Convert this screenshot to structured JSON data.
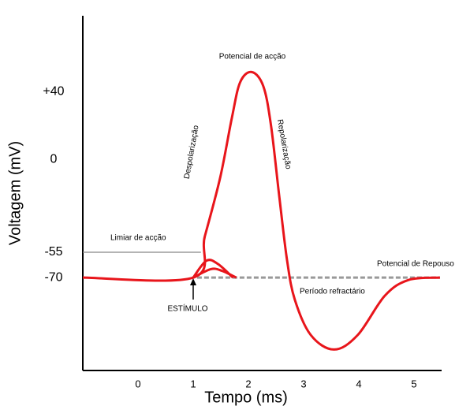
{
  "chart_data": {
    "type": "line",
    "xlabel": "Tempo (ms)",
    "ylabel": "Voltagem (mV)",
    "xlim": [
      -1,
      5.5
    ],
    "xticks": [
      0,
      1,
      2,
      3,
      4,
      5
    ],
    "ylim": [
      -125,
      85
    ],
    "yticks": [
      {
        "value": 40,
        "label": "+40"
      },
      0,
      -55,
      -70
    ],
    "grid": false,
    "series": [
      {
        "color": "#e8151b",
        "x": [
          -1,
          1,
          1.21,
          1.49,
          1.7,
          1.85,
          2.06,
          2.27,
          2.41,
          2.56,
          2.7,
          2.84,
          3.13,
          3.55,
          3.98,
          4.47,
          4.9,
          5.47
        ],
        "values": [
          -70,
          -70,
          -45.6,
          -10.6,
          24.5,
          45.6,
          51.7,
          43.3,
          19.9,
          -22.2,
          -59.7,
          -83,
          -104,
          -112.6,
          -104,
          -80.8,
          -71.4,
          -70
        ]
      },
      {
        "color": "#e8151b",
        "x": [
          1,
          1.24,
          1.45,
          1.72
        ],
        "values": [
          -70,
          -60,
          -62,
          -70
        ]
      },
      {
        "color": "#e8151b",
        "x": [
          1,
          1.32,
          1.52,
          1.78
        ],
        "values": [
          -70,
          -65,
          -66,
          -70
        ]
      },
      {
        "color": "#999999",
        "dashed": true,
        "x": [
          1.07,
          5.47
        ],
        "values": [
          -70,
          -70
        ]
      },
      {
        "color": "#888888",
        "thin": true,
        "x": [
          -1,
          1.14
        ],
        "values": [
          -55,
          -55
        ]
      }
    ],
    "annotations": [
      "Potencial de acção",
      "Despolarização",
      "Repolarização",
      "Limiar de acção",
      "Potencial de Repouso",
      "Período refractário",
      "ESTÍMULO"
    ]
  }
}
